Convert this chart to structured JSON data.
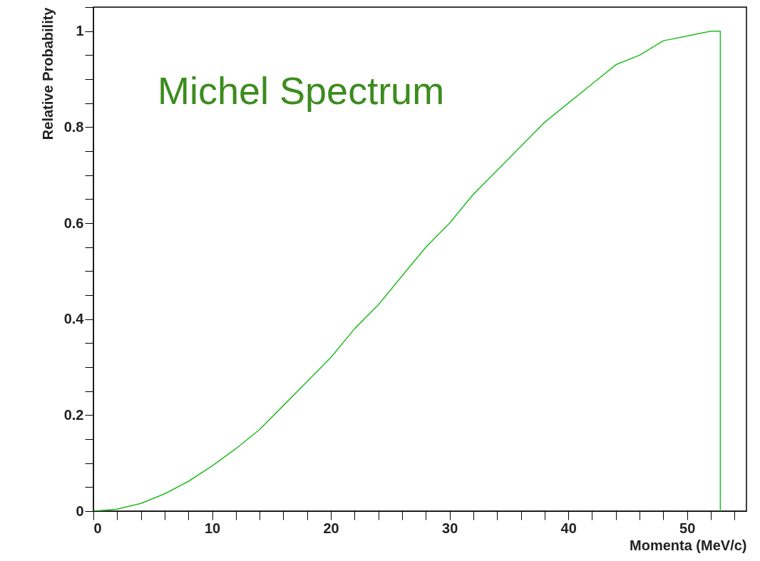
{
  "chart_data": {
    "type": "line",
    "annotations": [
      "Michel Spectrum"
    ],
    "xlabel": "Momenta (MeV/c)",
    "ylabel": "Relative Probability",
    "x": [
      0,
      2,
      4,
      6,
      8,
      10,
      12,
      14,
      16,
      18,
      20,
      22,
      24,
      26,
      28,
      30,
      32,
      34,
      36,
      38,
      40,
      42,
      44,
      46,
      48,
      50,
      52,
      52.8,
      52.8
    ],
    "series": [
      {
        "color": "#22bb22",
        "values": [
          0,
          0.004,
          0.016,
          0.036,
          0.062,
          0.094,
          0.13,
          0.17,
          0.22,
          0.27,
          0.32,
          0.38,
          0.43,
          0.49,
          0.55,
          0.6,
          0.66,
          0.71,
          0.76,
          0.81,
          0.85,
          0.89,
          0.93,
          0.95,
          0.98,
          0.99,
          1,
          1,
          0
        ]
      }
    ],
    "xlim": [
      0,
      55
    ],
    "ylim": [
      0,
      1.05
    ],
    "xticks": [
      0,
      {
        "value": 2,
        "label": null
      },
      {
        "value": 4,
        "label": null
      },
      {
        "value": 6,
        "label": null
      },
      {
        "value": 8,
        "label": null
      },
      10,
      {
        "value": 12,
        "label": null
      },
      {
        "value": 14,
        "label": null
      },
      {
        "value": 16,
        "label": null
      },
      {
        "value": 18,
        "label": null
      },
      20,
      {
        "value": 22,
        "label": null
      },
      {
        "value": 24,
        "label": null
      },
      {
        "value": 26,
        "label": null
      },
      {
        "value": 28,
        "label": null
      },
      30,
      {
        "value": 32,
        "label": null
      },
      {
        "value": 34,
        "label": null
      },
      {
        "value": 36,
        "label": null
      },
      {
        "value": 38,
        "label": null
      },
      40,
      {
        "value": 42,
        "label": null
      },
      {
        "value": 44,
        "label": null
      },
      {
        "value": 46,
        "label": null
      },
      {
        "value": 48,
        "label": null
      },
      50,
      {
        "value": 52,
        "label": null
      },
      {
        "value": 54,
        "label": null
      }
    ],
    "yticks": [
      0,
      {
        "value": 0.05,
        "label": null
      },
      {
        "value": 0.1,
        "label": null
      },
      {
        "value": 0.15,
        "label": null
      },
      0.2,
      {
        "value": 0.25,
        "label": null
      },
      {
        "value": 0.3,
        "label": null
      },
      {
        "value": 0.35,
        "label": null
      },
      0.4,
      {
        "value": 0.45,
        "label": null
      },
      {
        "value": 0.5,
        "label": null
      },
      {
        "value": 0.55,
        "label": null
      },
      0.6,
      {
        "value": 0.65,
        "label": null
      },
      {
        "value": 0.7,
        "label": null
      },
      {
        "value": 0.75,
        "label": null
      },
      0.8,
      {
        "value": 0.85,
        "label": null
      },
      {
        "value": 0.9,
        "label": null
      },
      {
        "value": 0.95,
        "label": null
      },
      1,
      {
        "value": 1.05,
        "label": null
      }
    ],
    "grid": false,
    "marker": "none",
    "line_style": "solid"
  }
}
